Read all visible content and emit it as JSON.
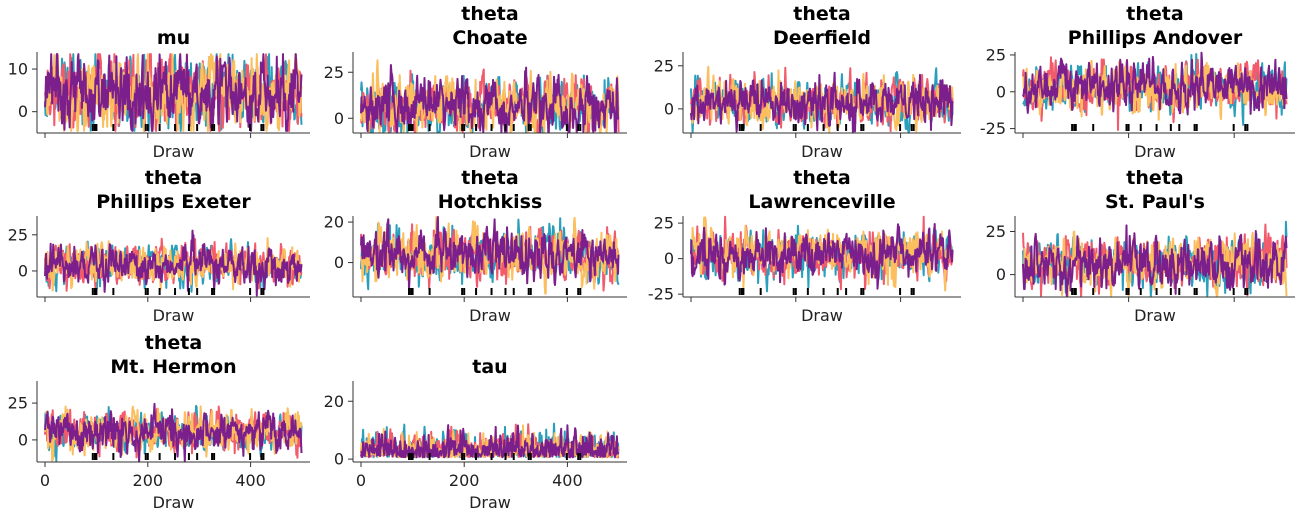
{
  "colors": [
    "#2a9fbc",
    "#f15b6c",
    "#fbbf5f",
    "#7b1f8c"
  ],
  "chart_data": [
    {
      "type": "line",
      "title": [
        "mu"
      ],
      "xlabel": "Draw",
      "xlim": [
        0,
        500
      ],
      "ylim": [
        -5,
        14
      ],
      "yticks": [
        0,
        10
      ],
      "xticks": [],
      "xticklabels": [],
      "draws": 500,
      "chains": 4,
      "center": 4.5,
      "spread": 3.5,
      "divergences": [
        93,
        97,
        100,
        133,
        196,
        200,
        223,
        253,
        280,
        296,
        325,
        329,
        399,
        421,
        425
      ]
    },
    {
      "type": "line",
      "title": [
        "theta",
        "Choate"
      ],
      "xlabel": "Draw",
      "xlim": [
        0,
        500
      ],
      "ylim": [
        -8,
        36
      ],
      "yticks": [
        0,
        25
      ],
      "xticks": [],
      "xticklabels": [],
      "draws": 500,
      "chains": 4,
      "center": 6.5,
      "spread": 6,
      "divergences": [
        93,
        97,
        100,
        133,
        196,
        200,
        223,
        253,
        280,
        296,
        325,
        329,
        399,
        421,
        425
      ]
    },
    {
      "type": "line",
      "title": [
        "theta",
        "Deerfield"
      ],
      "xlabel": "Draw",
      "xlim": [
        0,
        500
      ],
      "ylim": [
        -14,
        33
      ],
      "yticks": [
        0,
        25
      ],
      "xticks": [],
      "xticklabels": [],
      "draws": 500,
      "chains": 4,
      "center": 4.5,
      "spread": 5.5,
      "divergences": [
        93,
        97,
        100,
        133,
        196,
        200,
        223,
        253,
        280,
        296,
        325,
        329,
        399,
        421,
        425
      ]
    },
    {
      "type": "line",
      "title": [
        "theta",
        "Phillips Andover"
      ],
      "xlabel": "Draw",
      "xlim": [
        0,
        500
      ],
      "ylim": [
        -28,
        27
      ],
      "yticks": [
        -25,
        0,
        25
      ],
      "xticks": [],
      "xticklabels": [],
      "draws": 500,
      "chains": 4,
      "center": 3,
      "spread": 6.5,
      "divergences": [
        93,
        97,
        100,
        133,
        196,
        200,
        223,
        253,
        280,
        296,
        325,
        329,
        399,
        421,
        425
      ]
    },
    {
      "type": "line",
      "title": [
        "theta",
        "Phillips Exeter"
      ],
      "xlabel": "Draw",
      "xlim": [
        0,
        500
      ],
      "ylim": [
        -18,
        38
      ],
      "yticks": [
        0,
        25
      ],
      "xticks": [],
      "xticklabels": [],
      "draws": 500,
      "chains": 4,
      "center": 4,
      "spread": 5.5,
      "divergences": [
        93,
        97,
        100,
        133,
        196,
        200,
        223,
        253,
        280,
        296,
        325,
        329,
        399,
        421,
        425
      ]
    },
    {
      "type": "line",
      "title": [
        "theta",
        "Hotchkiss"
      ],
      "xlabel": "Draw",
      "xlim": [
        0,
        500
      ],
      "ylim": [
        -17,
        23
      ],
      "yticks": [
        0,
        20
      ],
      "xticks": [],
      "xticklabels": [],
      "draws": 500,
      "chains": 4,
      "center": 3,
      "spread": 5,
      "divergences": [
        93,
        97,
        100,
        133,
        196,
        200,
        223,
        253,
        280,
        296,
        325,
        329,
        399,
        421,
        425
      ]
    },
    {
      "type": "line",
      "title": [
        "theta",
        "Lawrenceville"
      ],
      "xlabel": "Draw",
      "xlim": [
        0,
        500
      ],
      "ylim": [
        -27,
        30
      ],
      "yticks": [
        -25,
        0,
        25
      ],
      "xticks": [],
      "xticklabels": [],
      "draws": 500,
      "chains": 4,
      "center": 3,
      "spread": 6.5,
      "divergences": [
        93,
        97,
        100,
        133,
        196,
        200,
        223,
        253,
        280,
        296,
        325,
        329,
        399,
        421,
        425
      ]
    },
    {
      "type": "line",
      "title": [
        "theta",
        "St. Paul's"
      ],
      "xlabel": "Draw",
      "xlim": [
        0,
        500
      ],
      "ylim": [
        -13,
        34
      ],
      "yticks": [
        0,
        25
      ],
      "xticks": [],
      "xticklabels": [],
      "draws": 500,
      "chains": 4,
      "center": 7,
      "spread": 6,
      "divergences": [
        93,
        97,
        100,
        133,
        196,
        200,
        223,
        253,
        280,
        296,
        325,
        329,
        399,
        421,
        425
      ]
    },
    {
      "type": "line",
      "title": [
        "theta",
        "Mt. Hermon"
      ],
      "xlabel": "Draw",
      "xlim": [
        0,
        500
      ],
      "ylim": [
        -15,
        40
      ],
      "yticks": [
        0,
        25
      ],
      "xticks": [
        0,
        200,
        400
      ],
      "xticklabels": [
        "0",
        "200",
        "400"
      ],
      "draws": 500,
      "chains": 4,
      "center": 5,
      "spread": 5.5,
      "divergences": [
        93,
        97,
        100,
        133,
        196,
        200,
        223,
        253,
        280,
        296,
        325,
        329,
        399,
        421,
        425
      ]
    },
    {
      "type": "line",
      "title": [
        "tau"
      ],
      "xlabel": "Draw",
      "xlim": [
        0,
        500
      ],
      "ylim": [
        -1,
        27
      ],
      "yticks": [
        0,
        20
      ],
      "xticks": [
        0,
        200,
        400
      ],
      "xticklabels": [
        "0",
        "200",
        "400"
      ],
      "draws": 500,
      "chains": 4,
      "center": 4,
      "spread": 3.5,
      "positive": true,
      "divergences": [
        93,
        97,
        100,
        133,
        196,
        200,
        223,
        253,
        280,
        296,
        325,
        329,
        399,
        421,
        425
      ]
    }
  ]
}
